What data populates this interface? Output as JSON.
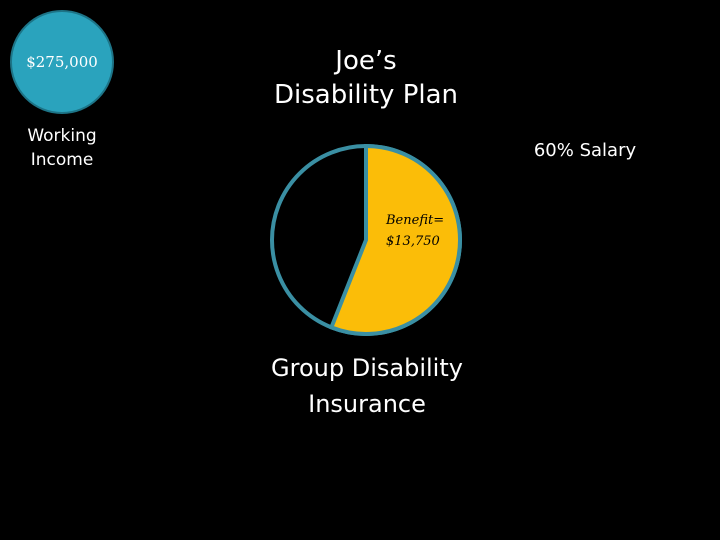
{
  "title": "Joe’s\nDisability Plan",
  "income": {
    "amount": "$275,000",
    "label": "Working\nIncome"
  },
  "salary_label": "60% Salary",
  "benefit": {
    "line1": "Benefit=",
    "line2": "$13,750"
  },
  "insurance_label": "Group Disability\nInsurance",
  "colors": {
    "income_fill": "#2aa3bd",
    "pie_benefit": "#fbbd08",
    "pie_rest": "#000000",
    "pie_outline": "#3a8fa3"
  },
  "pie": {
    "benefit_fraction": 0.56
  }
}
